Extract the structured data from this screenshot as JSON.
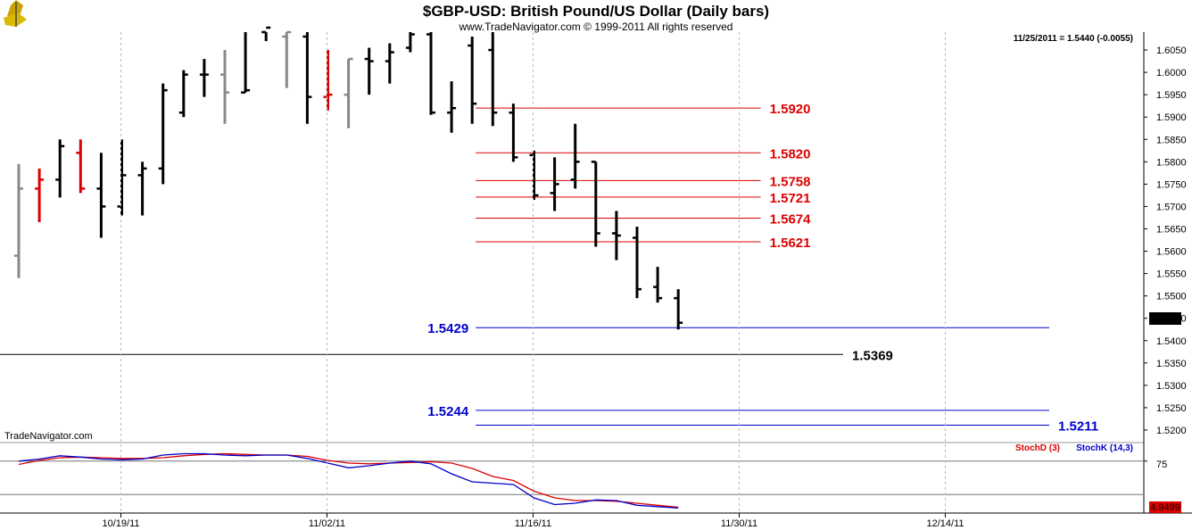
{
  "chart_data": {
    "type": "ohlc",
    "title": "$GBP-USD:  British Pound/US Dollar  (Daily bars)",
    "copyright": "www.TradeNavigator.com © 1999-2011 All rights reserved",
    "last_info": "11/25/2011 = 1.5440 (-0.0055)",
    "last_value_label": "1.5440",
    "watermark": "TradeNavigator.com",
    "colors": {
      "up": "#000000",
      "down": "#dd0000",
      "neutral": "#888888",
      "resistance": "#dd0000",
      "support": "#0000cc",
      "pivot": "#000000"
    },
    "price_axis": {
      "min": 1.518,
      "max": 1.609,
      "ticks": [
        "1.6050",
        "1.6000",
        "1.5950",
        "1.5900",
        "1.5850",
        "1.5800",
        "1.5750",
        "1.5700",
        "1.5650",
        "1.5600",
        "1.5550",
        "1.5500",
        "1.5450",
        "1.5400",
        "1.5350",
        "1.5300",
        "1.5250",
        "1.5200"
      ]
    },
    "date_axis": {
      "ticks": [
        {
          "label": "10/19/11",
          "index": 5
        },
        {
          "label": "11/02/11",
          "index": 15
        },
        {
          "label": "11/16/11",
          "index": 25
        },
        {
          "label": "11/30/11",
          "index": 35
        },
        {
          "label": "12/14/11",
          "index": 45
        }
      ]
    },
    "bars": [
      {
        "h": 1.5795,
        "l": 1.554,
        "o": 1.559,
        "c": 1.574,
        "color": "neutral"
      },
      {
        "h": 1.5785,
        "l": 1.5665,
        "o": 1.574,
        "c": 1.576,
        "color": "down"
      },
      {
        "h": 1.585,
        "l": 1.572,
        "o": 1.576,
        "c": 1.5835,
        "color": "up"
      },
      {
        "h": 1.585,
        "l": 1.573,
        "o": 1.582,
        "c": 1.574,
        "color": "down"
      },
      {
        "h": 1.582,
        "l": 1.563,
        "o": 1.574,
        "c": 1.57,
        "color": "up"
      },
      {
        "h": 1.585,
        "l": 1.568,
        "o": 1.57,
        "c": 1.577,
        "color": "up"
      },
      {
        "h": 1.58,
        "l": 1.568,
        "o": 1.577,
        "c": 1.5785,
        "color": "up"
      },
      {
        "h": 1.5975,
        "l": 1.575,
        "o": 1.5785,
        "c": 1.596,
        "color": "up"
      },
      {
        "h": 1.6005,
        "l": 1.59,
        "o": 1.591,
        "c": 1.5995,
        "color": "up"
      },
      {
        "h": 1.603,
        "l": 1.5945,
        "o": 1.5995,
        "c": 1.5995,
        "color": "up"
      },
      {
        "h": 1.605,
        "l": 1.5885,
        "o": 1.5995,
        "c": 1.5955,
        "color": "neutral"
      },
      {
        "h": 1.61,
        "l": 1.5955,
        "o": 1.5955,
        "c": 1.596,
        "color": "up"
      },
      {
        "h": 1.612,
        "l": 1.607,
        "o": 1.609,
        "c": 1.61,
        "color": "up"
      },
      {
        "h": 1.611,
        "l": 1.5965,
        "o": 1.608,
        "c": 1.609,
        "color": "neutral"
      },
      {
        "h": 1.609,
        "l": 1.5885,
        "o": 1.608,
        "c": 1.5945,
        "color": "up"
      },
      {
        "h": 1.605,
        "l": 1.5915,
        "o": 1.5945,
        "c": 1.595,
        "color": "down"
      },
      {
        "h": 1.603,
        "l": 1.5875,
        "o": 1.595,
        "c": 1.603,
        "color": "neutral"
      },
      {
        "h": 1.6055,
        "l": 1.595,
        "o": 1.603,
        "c": 1.6025,
        "color": "up"
      },
      {
        "h": 1.6065,
        "l": 1.5975,
        "o": 1.6025,
        "c": 1.6045,
        "color": "up"
      },
      {
        "h": 1.6095,
        "l": 1.6045,
        "o": 1.6055,
        "c": 1.6085,
        "color": "up"
      },
      {
        "h": 1.61,
        "l": 1.5905,
        "o": 1.6085,
        "c": 1.591,
        "color": "up"
      },
      {
        "h": 1.598,
        "l": 1.5865,
        "o": 1.591,
        "c": 1.592,
        "color": "up"
      },
      {
        "h": 1.608,
        "l": 1.5885,
        "o": 1.606,
        "c": 1.593,
        "color": "up"
      },
      {
        "h": 1.609,
        "l": 1.588,
        "o": 1.605,
        "c": 1.591,
        "color": "up"
      },
      {
        "h": 1.593,
        "l": 1.58,
        "o": 1.591,
        "c": 1.581,
        "color": "up"
      },
      {
        "h": 1.5825,
        "l": 1.5715,
        "o": 1.5815,
        "c": 1.5725,
        "color": "up"
      },
      {
        "h": 1.581,
        "l": 1.569,
        "o": 1.573,
        "c": 1.575,
        "color": "up"
      },
      {
        "h": 1.5885,
        "l": 1.574,
        "o": 1.576,
        "c": 1.58,
        "color": "up"
      },
      {
        "h": 1.58,
        "l": 1.561,
        "o": 1.58,
        "c": 1.564,
        "color": "up"
      },
      {
        "h": 1.569,
        "l": 1.558,
        "o": 1.564,
        "c": 1.5635,
        "color": "up"
      },
      {
        "h": 1.5655,
        "l": 1.5495,
        "o": 1.563,
        "c": 1.5515,
        "color": "up"
      },
      {
        "h": 1.5565,
        "l": 1.5485,
        "o": 1.552,
        "c": 1.5495,
        "color": "up"
      },
      {
        "h": 1.5515,
        "l": 1.5425,
        "o": 1.5495,
        "c": 1.544,
        "color": "up"
      }
    ],
    "levels": [
      {
        "label": "1.5920",
        "value": 1.592,
        "kind": "resistance",
        "from_index": 22,
        "to_index": 36,
        "label_side": "right"
      },
      {
        "label": "1.5820",
        "value": 1.582,
        "kind": "resistance",
        "from_index": 22,
        "to_index": 36,
        "label_side": "right"
      },
      {
        "label": "1.5758",
        "value": 1.5758,
        "kind": "resistance",
        "from_index": 22,
        "to_index": 36,
        "label_side": "right"
      },
      {
        "label": "1.5721",
        "value": 1.5721,
        "kind": "resistance",
        "from_index": 22,
        "to_index": 36,
        "label_side": "right"
      },
      {
        "label": "1.5674",
        "value": 1.5674,
        "kind": "resistance",
        "from_index": 22,
        "to_index": 36,
        "label_side": "right"
      },
      {
        "label": "1.5621",
        "value": 1.5621,
        "kind": "resistance",
        "from_index": 22,
        "to_index": 36,
        "label_side": "right"
      },
      {
        "label": "1.5429",
        "value": 1.5429,
        "kind": "support",
        "from_index": 22,
        "to_index": 50,
        "label_side": "left"
      },
      {
        "label": "1.5369",
        "value": 1.5369,
        "kind": "pivot",
        "from_index": -1,
        "to_index": 40,
        "label_side": "right"
      },
      {
        "label": "1.5244",
        "value": 1.5244,
        "kind": "support",
        "from_index": 22,
        "to_index": 50,
        "label_side": "left"
      },
      {
        "label": "1.5211",
        "value": 1.5211,
        "kind": "support",
        "from_index": 22,
        "to_index": 50,
        "label_side": "right"
      }
    ],
    "stochastic": {
      "legend_d": "StochD (3)",
      "legend_k": "StochK (14,3)",
      "level_label": "75",
      "level_value": 75,
      "last_value_label": "4.9499",
      "upper_level": 75,
      "lower_level": 25,
      "range": [
        0,
        100
      ],
      "stoch_d": [
        70,
        76,
        80,
        81,
        80,
        79,
        79,
        80,
        83,
        85,
        86,
        85,
        84,
        84,
        82,
        76,
        72,
        71,
        72,
        73,
        74,
        72,
        64,
        52,
        46,
        30,
        20,
        16,
        16,
        15,
        12,
        9,
        6
      ],
      "stoch_k": [
        75,
        78,
        83,
        81,
        78,
        77,
        78,
        84,
        86,
        86,
        84,
        83,
        84,
        84,
        79,
        72,
        65,
        68,
        72,
        75,
        71,
        56,
        44,
        42,
        40,
        20,
        10,
        12,
        17,
        16,
        9,
        7,
        5
      ]
    }
  }
}
